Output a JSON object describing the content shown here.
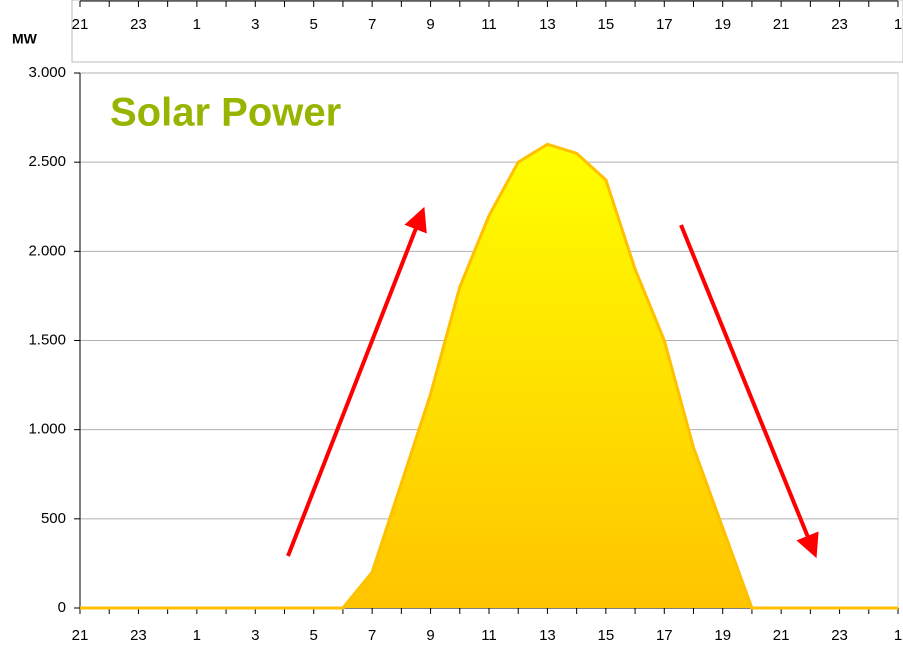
{
  "chart_data": {
    "type": "area",
    "title": "Solar Power",
    "y_label": "MW",
    "categories": [
      "21",
      null,
      "23",
      null,
      "1",
      null,
      "3",
      null,
      "5",
      null,
      "7",
      null,
      "9",
      null,
      "11",
      null,
      "13",
      null,
      "15",
      null,
      "17",
      null,
      "19",
      null,
      "21",
      null,
      "23",
      null,
      "1"
    ],
    "series": [
      {
        "name": "Solar Power",
        "color": "#ffc000",
        "values": [
          0,
          0,
          0,
          0,
          0,
          0,
          0,
          0,
          0,
          0,
          200,
          700,
          1200,
          1800,
          2200,
          2500,
          2600,
          2550,
          2400,
          1900,
          1500,
          900,
          450,
          0,
          0,
          0,
          0,
          0,
          0
        ]
      }
    ],
    "ylim": [
      0,
      3000
    ],
    "yticks": [
      0,
      500,
      {
        "value": 1000,
        "label": "1.000"
      },
      {
        "value": 1500,
        "label": "1.500"
      },
      {
        "value": 2000,
        "label": "2.000"
      },
      {
        "value": 2500,
        "label": "2.500"
      },
      {
        "value": 3000,
        "label": "3.000"
      }
    ],
    "grid": true
  }
}
